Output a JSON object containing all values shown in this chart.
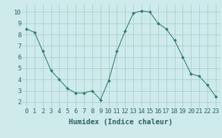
{
  "x": [
    0,
    1,
    2,
    3,
    4,
    5,
    6,
    7,
    8,
    9,
    10,
    11,
    12,
    13,
    14,
    15,
    16,
    17,
    18,
    19,
    20,
    21,
    22,
    23
  ],
  "y": [
    8.5,
    8.2,
    6.5,
    4.8,
    4.0,
    3.2,
    2.8,
    2.8,
    3.0,
    2.2,
    3.9,
    6.5,
    8.3,
    9.9,
    10.1,
    10.0,
    9.0,
    8.5,
    7.5,
    6.0,
    4.5,
    4.3,
    3.5,
    2.5
  ],
  "line_color": "#2e7d6e",
  "marker": "D",
  "marker_size": 2.0,
  "background_color": "#ceeaea",
  "grid_color": "#aacece",
  "xlabel": "Humidex (Indice chaleur)",
  "xlabel_fontsize": 7.5,
  "xlim": [
    -0.5,
    23.5
  ],
  "ylim": [
    1.5,
    10.7
  ],
  "yticks": [
    2,
    3,
    4,
    5,
    6,
    7,
    8,
    9,
    10
  ],
  "xticks": [
    0,
    1,
    2,
    3,
    4,
    5,
    6,
    7,
    8,
    9,
    10,
    11,
    12,
    13,
    14,
    15,
    16,
    17,
    18,
    19,
    20,
    21,
    22,
    23
  ],
  "tick_fontsize": 6.5
}
